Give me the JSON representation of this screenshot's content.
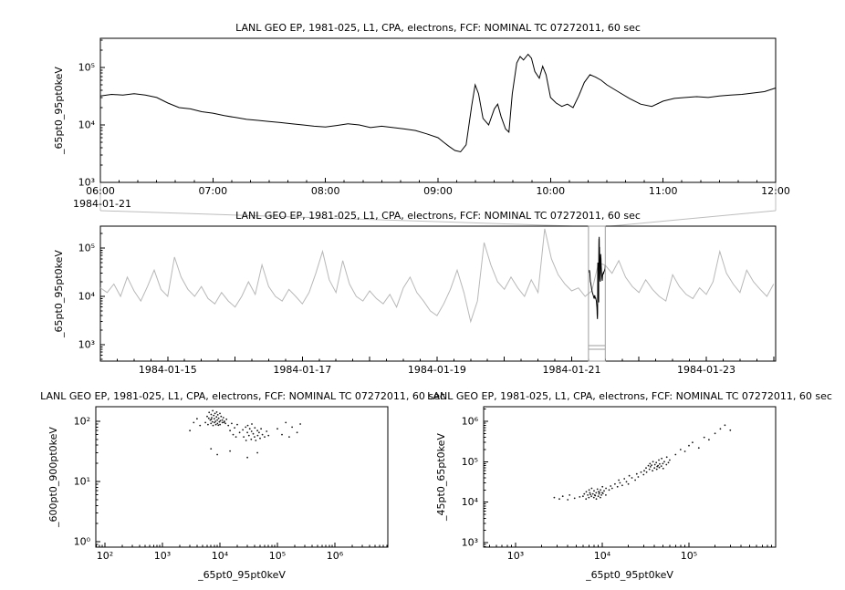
{
  "window": {
    "background": "#ffffff",
    "foreground": "#000000",
    "context_gray": "#b8b8b8",
    "connector_gray": "#bdbdbd",
    "selector_gray": "#9e9e9e"
  },
  "chart_data": [
    {
      "id": "zoom-panel",
      "type": "line",
      "title": "LANL GEO EP, 1981-025, L1, CPA, electrons, FCF: NOMINAL TC 07272011, 60 sec",
      "ylabel": "_65pt0_95pt0keV",
      "xlabel": "",
      "x_axis": {
        "kind": "time-of-day",
        "context_label": "1984-01-21",
        "range_hours": [
          6,
          12
        ],
        "ticks": [
          {
            "v": 6,
            "label": "06:00"
          },
          {
            "v": 7,
            "label": "07:00"
          },
          {
            "v": 8,
            "label": "08:00"
          },
          {
            "v": 9,
            "label": "09:00"
          },
          {
            "v": 10,
            "label": "10:00"
          },
          {
            "v": 11,
            "label": "11:00"
          },
          {
            "v": 12,
            "label": "12:00"
          }
        ]
      },
      "y_axis": {
        "kind": "log",
        "ticks": [
          {
            "exp": 3,
            "label": "10³"
          },
          {
            "exp": 4,
            "label": "10⁴"
          },
          {
            "exp": 5,
            "label": "10⁵"
          }
        ]
      },
      "series": [
        {
          "name": "_65pt0_95pt0keV",
          "color": "#000000",
          "x_hours": [
            6,
            6.1,
            6.2,
            6.3,
            6.4,
            6.5,
            6.6,
            6.7,
            6.8,
            6.9,
            7,
            7.1,
            7.2,
            7.3,
            7.4,
            7.5,
            7.6,
            7.7,
            7.8,
            7.9,
            8,
            8.1,
            8.2,
            8.3,
            8.4,
            8.5,
            8.6,
            8.7,
            8.8,
            8.9,
            9,
            9.05,
            9.1,
            9.15,
            9.2,
            9.25,
            9.3,
            9.33,
            9.36,
            9.4,
            9.45,
            9.5,
            9.53,
            9.56,
            9.6,
            9.63,
            9.66,
            9.7,
            9.73,
            9.76,
            9.8,
            9.83,
            9.86,
            9.9,
            9.93,
            9.96,
            10,
            10.05,
            10.1,
            10.15,
            10.2,
            10.25,
            10.3,
            10.35,
            10.4,
            10.45,
            10.5,
            10.6,
            10.7,
            10.8,
            10.9,
            11,
            11.1,
            11.2,
            11.3,
            11.4,
            11.5,
            11.6,
            11.7,
            11.8,
            11.9,
            12
          ],
          "y": [
            32000,
            34000,
            33000,
            35000,
            33000,
            30000,
            24000,
            20000,
            19000,
            17000,
            16000,
            14500,
            13500,
            12500,
            12000,
            11500,
            11000,
            10500,
            10000,
            9500,
            9200,
            9800,
            10500,
            10000,
            9000,
            9500,
            9000,
            8500,
            8000,
            7000,
            6000,
            5000,
            4200,
            3600,
            3400,
            4500,
            22000,
            50000,
            35000,
            13000,
            10000,
            19000,
            23000,
            14000,
            8500,
            7500,
            35000,
            120000,
            155000,
            135000,
            170000,
            145000,
            85000,
            65000,
            105000,
            75000,
            30000,
            24000,
            21000,
            23000,
            20000,
            32000,
            55000,
            75000,
            68000,
            60000,
            50000,
            38000,
            29000,
            23000,
            21000,
            26000,
            29000,
            30000,
            31000,
            30000,
            32000,
            33000,
            34000,
            36000,
            38000,
            44000
          ]
        }
      ]
    },
    {
      "id": "context-panel",
      "type": "line",
      "title": "LANL GEO EP, 1981-025, L1, CPA, electrons, FCF: NOMINAL TC 07272011, 60 sec",
      "ylabel": "_65pt0_95pt0keV",
      "xlabel": "",
      "x_axis": {
        "kind": "date",
        "month": "1984-01",
        "range_days": [
          14,
          24.03
        ],
        "ticks": [
          {
            "v": 15,
            "label": "1984-01-15"
          },
          {
            "v": 17,
            "label": "1984-01-17"
          },
          {
            "v": 19,
            "label": "1984-01-19"
          },
          {
            "v": 21,
            "label": "1984-01-21"
          },
          {
            "v": 23,
            "label": "1984-01-23"
          }
        ]
      },
      "y_axis": {
        "kind": "log",
        "ticks": [
          {
            "exp": 3,
            "label": "10³"
          },
          {
            "exp": 4,
            "label": "10⁴"
          },
          {
            "exp": 5,
            "label": "10⁵"
          }
        ]
      },
      "series": [
        {
          "name": "context _65pt0_95pt0keV",
          "color": "#b8b8b8",
          "x_days_start": 14.0,
          "x_days_step": 0.1,
          "y": [
            15000,
            12000,
            18000,
            10000,
            25000,
            13000,
            8000,
            16000,
            35000,
            14000,
            10000,
            65000,
            25000,
            14000,
            10000,
            16000,
            9000,
            7000,
            12000,
            8000,
            6000,
            10000,
            20000,
            11000,
            45000,
            16000,
            10000,
            8000,
            14000,
            10000,
            7000,
            12000,
            30000,
            85000,
            22000,
            12000,
            55000,
            18000,
            10000,
            8000,
            13000,
            9000,
            7000,
            11000,
            6000,
            15000,
            25000,
            12000,
            8000,
            5000,
            4000,
            7000,
            14000,
            35000,
            12000,
            3000,
            8000,
            130000,
            45000,
            20000,
            14000,
            25000,
            15000,
            10000,
            22000,
            12000,
            250000,
            60000,
            28000,
            18000,
            13000,
            15000,
            10000,
            13000,
            50000,
            44000,
            30000,
            55000,
            25000,
            16000,
            12000,
            22000,
            14000,
            10000,
            8000,
            28000,
            16000,
            11000,
            9000,
            15000,
            11000,
            20000,
            85000,
            30000,
            18000,
            12000,
            35000,
            20000,
            14000,
            10000,
            18000
          ]
        }
      ],
      "selection": {
        "x_days": [
          21.25,
          21.5
        ],
        "box_color": "#9e9e9e",
        "highlight_color": "#000000",
        "highlight_source": "chart_data.0.series.0"
      }
    },
    {
      "id": "scatter-600-900",
      "type": "scatter",
      "title": "LANL GEO EP, 1981-025, L1, CPA, electrons, FCF: NOMINAL TC 07272011, 60 sec",
      "xlabel": "_65pt0_95pt0keV",
      "ylabel": "_600pt0_900pt0keV",
      "x_axis": {
        "kind": "log",
        "ticks": [
          {
            "exp": 2,
            "label": "10²"
          },
          {
            "exp": 3,
            "label": "10³"
          },
          {
            "exp": 4,
            "label": "10⁴"
          },
          {
            "exp": 5,
            "label": "10⁵"
          },
          {
            "exp": 6,
            "label": "10⁶"
          }
        ]
      },
      "y_axis": {
        "kind": "log",
        "ticks": [
          {
            "exp": 0,
            "label": "10⁰"
          },
          {
            "exp": 1,
            "label": "10¹"
          },
          {
            "exp": 2,
            "label": "10²"
          }
        ]
      },
      "point_color": "#000000",
      "points": [
        [
          5600,
          95
        ],
        [
          6000,
          120
        ],
        [
          6200,
          88
        ],
        [
          6500,
          140
        ],
        [
          6800,
          105
        ],
        [
          7000,
          92
        ],
        [
          7050,
          130
        ],
        [
          7200,
          115
        ],
        [
          7400,
          98
        ],
        [
          7500,
          150
        ],
        [
          7600,
          85
        ],
        [
          7800,
          125
        ],
        [
          8000,
          110
        ],
        [
          8050,
          95
        ],
        [
          8200,
          135
        ],
        [
          8400,
          100
        ],
        [
          8500,
          88
        ],
        [
          8700,
          118
        ],
        [
          9000,
          105
        ],
        [
          9050,
          92
        ],
        [
          9200,
          128
        ],
        [
          9500,
          112
        ],
        [
          9800,
          98
        ],
        [
          10000,
          135
        ],
        [
          10050,
          88
        ],
        [
          10500,
          120
        ],
        [
          11000,
          105
        ],
        [
          11050,
          95
        ],
        [
          11500,
          115
        ],
        [
          12000,
          100
        ],
        [
          12500,
          92
        ],
        [
          13000,
          108
        ],
        [
          6400,
          112
        ],
        [
          7100,
          108
        ],
        [
          8800,
          142
        ],
        [
          9400,
          86
        ],
        [
          10200,
          102
        ],
        [
          11800,
          96
        ],
        [
          14000,
          85
        ],
        [
          15000,
          70
        ],
        [
          16000,
          92
        ],
        [
          17000,
          60
        ],
        [
          18000,
          78
        ],
        [
          19000,
          55
        ],
        [
          20000,
          88
        ],
        [
          22000,
          65
        ],
        [
          25000,
          72
        ],
        [
          26000,
          55
        ],
        [
          28000,
          80
        ],
        [
          28500,
          48
        ],
        [
          30000,
          65
        ],
        [
          30500,
          85
        ],
        [
          32000,
          58
        ],
        [
          33000,
          75
        ],
        [
          35000,
          50
        ],
        [
          35500,
          68
        ],
        [
          36000,
          90
        ],
        [
          38000,
          62
        ],
        [
          40000,
          55
        ],
        [
          40500,
          78
        ],
        [
          42000,
          48
        ],
        [
          45000,
          70
        ],
        [
          45500,
          58
        ],
        [
          48000,
          65
        ],
        [
          50000,
          52
        ],
        [
          52000,
          75
        ],
        [
          55000,
          60
        ],
        [
          60000,
          55
        ],
        [
          65000,
          68
        ],
        [
          70000,
          58
        ],
        [
          100000,
          75
        ],
        [
          120000,
          60
        ],
        [
          140000,
          95
        ],
        [
          160000,
          55
        ],
        [
          180000,
          80
        ],
        [
          220000,
          65
        ],
        [
          250000,
          90
        ],
        [
          7000,
          35
        ],
        [
          9000,
          28
        ],
        [
          15000,
          32
        ],
        [
          30000,
          25
        ],
        [
          45000,
          30
        ],
        [
          3000,
          70
        ],
        [
          3500,
          95
        ],
        [
          4000,
          110
        ],
        [
          4500,
          85
        ]
      ]
    },
    {
      "id": "scatter-45-65",
      "type": "scatter",
      "title": "LANL GEO EP, 1981-025, L1, CPA, electrons, FCF: NOMINAL TC 07272011, 60 sec",
      "xlabel": "_65pt0_95pt0keV",
      "ylabel": "_45pt0_65pt0keV",
      "x_axis": {
        "kind": "log",
        "ticks": [
          {
            "exp": 3,
            "label": "10³"
          },
          {
            "exp": 4,
            "label": "10⁴"
          },
          {
            "exp": 5,
            "label": "10⁵"
          }
        ]
      },
      "y_axis": {
        "kind": "log",
        "ticks": [
          {
            "exp": 3,
            "label": "10³"
          },
          {
            "exp": 4,
            "label": "10⁴"
          },
          {
            "exp": 5,
            "label": "10⁵"
          },
          {
            "exp": 6,
            "label": "10⁶"
          }
        ]
      },
      "point_color": "#000000",
      "points": [
        [
          6000,
          14000
        ],
        [
          6200,
          16000
        ],
        [
          6500,
          12000
        ],
        [
          6550,
          18000
        ],
        [
          6800,
          15000
        ],
        [
          7000,
          13000
        ],
        [
          7050,
          20000
        ],
        [
          7200,
          17000
        ],
        [
          7500,
          14000
        ],
        [
          7550,
          22000
        ],
        [
          7800,
          16000
        ],
        [
          8000,
          13000
        ],
        [
          8050,
          19000
        ],
        [
          8200,
          15000
        ],
        [
          8500,
          17000
        ],
        [
          8550,
          12000
        ],
        [
          8800,
          21000
        ],
        [
          9000,
          14000
        ],
        [
          9050,
          18000
        ],
        [
          9200,
          16000
        ],
        [
          9500,
          13000
        ],
        [
          9550,
          20000
        ],
        [
          9800,
          15000
        ],
        [
          10000,
          17000
        ],
        [
          10050,
          24000
        ],
        [
          10500,
          19000
        ],
        [
          11000,
          15000
        ],
        [
          11050,
          22000
        ],
        [
          8300,
          14500
        ],
        [
          7300,
          15500
        ],
        [
          9300,
          17500
        ],
        [
          10200,
          16500
        ],
        [
          2800,
          13000
        ],
        [
          3200,
          12000
        ],
        [
          3500,
          14000
        ],
        [
          4000,
          11500
        ],
        [
          4200,
          15000
        ],
        [
          4800,
          12500
        ],
        [
          5500,
          13500
        ],
        [
          12000,
          20000
        ],
        [
          12500,
          25000
        ],
        [
          13000,
          22000
        ],
        [
          14000,
          28000
        ],
        [
          15000,
          24000
        ],
        [
          15500,
          35000
        ],
        [
          16000,
          30000
        ],
        [
          17000,
          26000
        ],
        [
          18000,
          38000
        ],
        [
          19000,
          32000
        ],
        [
          20000,
          28000
        ],
        [
          20500,
          45000
        ],
        [
          22000,
          40000
        ],
        [
          24000,
          35000
        ],
        [
          25000,
          50000
        ],
        [
          26000,
          42000
        ],
        [
          28000,
          55000
        ],
        [
          30000,
          48000
        ],
        [
          30500,
          60000
        ],
        [
          32000,
          70000
        ],
        [
          32500,
          55000
        ],
        [
          34000,
          80000
        ],
        [
          35000,
          65000
        ],
        [
          35500,
          90000
        ],
        [
          36000,
          75000
        ],
        [
          38000,
          60000
        ],
        [
          38500,
          100000
        ],
        [
          40000,
          70000
        ],
        [
          40500,
          85000
        ],
        [
          42000,
          95000
        ],
        [
          42500,
          65000
        ],
        [
          44000,
          80000
        ],
        [
          45000,
          110000
        ],
        [
          45500,
          72000
        ],
        [
          46000,
          88000
        ],
        [
          48000,
          78000
        ],
        [
          48500,
          120000
        ],
        [
          50000,
          90000
        ],
        [
          50500,
          68000
        ],
        [
          52000,
          100000
        ],
        [
          55000,
          85000
        ],
        [
          55500,
          130000
        ],
        [
          58000,
          95000
        ],
        [
          60000,
          110000
        ],
        [
          37000,
          82000
        ],
        [
          43000,
          76000
        ],
        [
          70000,
          150000
        ],
        [
          80000,
          200000
        ],
        [
          90000,
          180000
        ],
        [
          100000,
          250000
        ],
        [
          110000,
          300000
        ],
        [
          130000,
          220000
        ],
        [
          150000,
          400000
        ],
        [
          170000,
          350000
        ],
        [
          200000,
          500000
        ],
        [
          230000,
          650000
        ],
        [
          260000,
          800000
        ],
        [
          300000,
          600000
        ]
      ]
    }
  ]
}
